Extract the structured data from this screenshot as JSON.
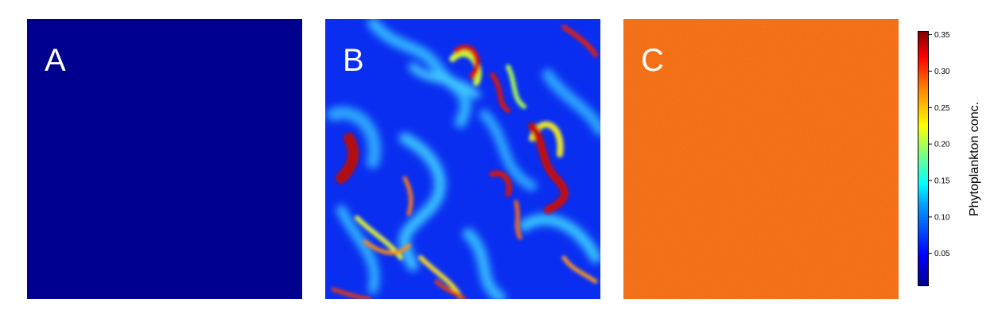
{
  "panels": [
    {
      "letter": "A",
      "pattern": "uniform low",
      "fill": "#00008f"
    },
    {
      "letter": "B",
      "pattern": "turbulent patches",
      "fill": "#0a2ef0"
    },
    {
      "letter": "C",
      "pattern": "uniform high with noise",
      "fill": "#f26a10"
    }
  ],
  "chart_data": {
    "type": "heatmap",
    "colormap": "jet",
    "colorbar": {
      "label": "Phytoplankton conc.",
      "range": [
        0.005,
        0.355
      ],
      "ticks": [
        0.05,
        0.1,
        0.15,
        0.2,
        0.25,
        0.3,
        0.35
      ],
      "tick_labels": [
        "0.05",
        "0.10",
        "0.15",
        "0.20",
        "0.25",
        "0.30",
        "0.35"
      ]
    },
    "panels": [
      {
        "name": "A",
        "approx_value": 0.005
      },
      {
        "name": "B",
        "approx_value_range": [
          0.05,
          0.35
        ]
      },
      {
        "name": "C",
        "approx_value": 0.28
      }
    ]
  }
}
